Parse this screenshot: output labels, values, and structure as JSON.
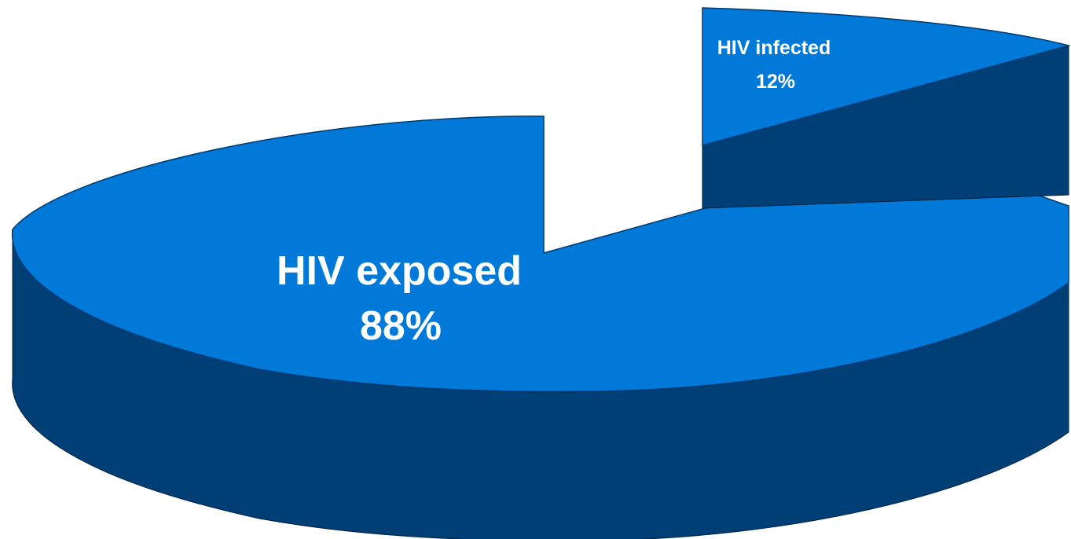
{
  "chart_data": {
    "type": "pie",
    "title": "",
    "style": "3d-exploded",
    "slices": [
      {
        "label": "HIV exposed",
        "value": 88,
        "value_label": "88%",
        "color_top": "#0079D9",
        "color_side": "#003F75"
      },
      {
        "label": "HIV infected",
        "value": 12,
        "value_label": "12%",
        "color_top": "#0079D9",
        "color_side": "#003F75"
      }
    ],
    "legend": "none"
  }
}
